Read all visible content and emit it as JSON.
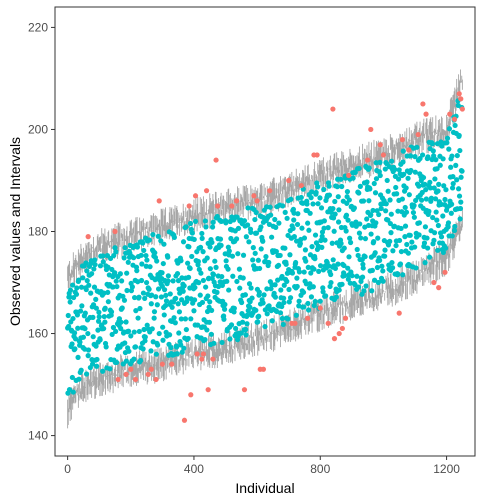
{
  "chart_data": {
    "type": "scatter",
    "title": "",
    "xlabel": "Individual",
    "ylabel": "Observed values and Intervals",
    "xlim": [
      -40,
      1290
    ],
    "ylim": [
      136,
      224
    ],
    "x_ticks": [
      0,
      400,
      800,
      1200
    ],
    "y_ticks": [
      140,
      160,
      180,
      200,
      220
    ],
    "x_tick_labels": [
      "0",
      "400",
      "800",
      "1200"
    ],
    "y_tick_labels": [
      "140",
      "160",
      "180",
      "200",
      "220"
    ],
    "grid": false,
    "legend": "none",
    "n_individuals": 1250,
    "colors": {
      "inside": "#00BFC4",
      "outside": "#F8766D",
      "interval": "#A6A6A6",
      "frame": "#333333"
    },
    "interval_band": {
      "x": [
        0,
        50,
        100,
        200,
        300,
        400,
        500,
        600,
        700,
        800,
        900,
        1000,
        1100,
        1200,
        1250
      ],
      "upper": [
        171,
        175,
        177,
        179,
        181,
        183,
        185,
        186,
        188,
        191,
        193,
        195,
        198,
        200,
        210
      ],
      "lower": [
        145,
        150,
        151,
        153,
        154,
        156,
        157,
        159,
        161,
        164,
        166,
        168,
        171,
        175,
        181
      ]
    },
    "outside_points": [
      {
        "x": 65,
        "y": 179
      },
      {
        "x": 150,
        "y": 180
      },
      {
        "x": 160,
        "y": 151
      },
      {
        "x": 185,
        "y": 152
      },
      {
        "x": 200,
        "y": 153
      },
      {
        "x": 215,
        "y": 151
      },
      {
        "x": 255,
        "y": 152
      },
      {
        "x": 265,
        "y": 153
      },
      {
        "x": 280,
        "y": 151
      },
      {
        "x": 290,
        "y": 186
      },
      {
        "x": 300,
        "y": 154
      },
      {
        "x": 330,
        "y": 154
      },
      {
        "x": 370,
        "y": 143
      },
      {
        "x": 385,
        "y": 185
      },
      {
        "x": 390,
        "y": 148
      },
      {
        "x": 405,
        "y": 187
      },
      {
        "x": 410,
        "y": 156
      },
      {
        "x": 425,
        "y": 155
      },
      {
        "x": 430,
        "y": 156
      },
      {
        "x": 440,
        "y": 188
      },
      {
        "x": 445,
        "y": 149
      },
      {
        "x": 460,
        "y": 155
      },
      {
        "x": 470,
        "y": 194
      },
      {
        "x": 475,
        "y": 185
      },
      {
        "x": 520,
        "y": 185
      },
      {
        "x": 535,
        "y": 186
      },
      {
        "x": 560,
        "y": 149
      },
      {
        "x": 590,
        "y": 187
      },
      {
        "x": 600,
        "y": 186
      },
      {
        "x": 610,
        "y": 153
      },
      {
        "x": 620,
        "y": 153
      },
      {
        "x": 640,
        "y": 188
      },
      {
        "x": 700,
        "y": 190
      },
      {
        "x": 710,
        "y": 162
      },
      {
        "x": 720,
        "y": 162
      },
      {
        "x": 740,
        "y": 189
      },
      {
        "x": 760,
        "y": 163
      },
      {
        "x": 780,
        "y": 195
      },
      {
        "x": 790,
        "y": 195
      },
      {
        "x": 800,
        "y": 165
      },
      {
        "x": 825,
        "y": 162
      },
      {
        "x": 840,
        "y": 204
      },
      {
        "x": 845,
        "y": 159
      },
      {
        "x": 860,
        "y": 160
      },
      {
        "x": 870,
        "y": 161
      },
      {
        "x": 880,
        "y": 163
      },
      {
        "x": 890,
        "y": 191
      },
      {
        "x": 950,
        "y": 194
      },
      {
        "x": 960,
        "y": 200
      },
      {
        "x": 990,
        "y": 197
      },
      {
        "x": 1000,
        "y": 195
      },
      {
        "x": 1050,
        "y": 164
      },
      {
        "x": 1060,
        "y": 198
      },
      {
        "x": 1080,
        "y": 196
      },
      {
        "x": 1110,
        "y": 199
      },
      {
        "x": 1125,
        "y": 205
      },
      {
        "x": 1135,
        "y": 203
      },
      {
        "x": 1160,
        "y": 170
      },
      {
        "x": 1175,
        "y": 169
      },
      {
        "x": 1195,
        "y": 172
      },
      {
        "x": 1210,
        "y": 203
      },
      {
        "x": 1225,
        "y": 202
      },
      {
        "x": 1240,
        "y": 207
      },
      {
        "x": 1245,
        "y": 206
      },
      {
        "x": 1250,
        "y": 204
      }
    ]
  }
}
